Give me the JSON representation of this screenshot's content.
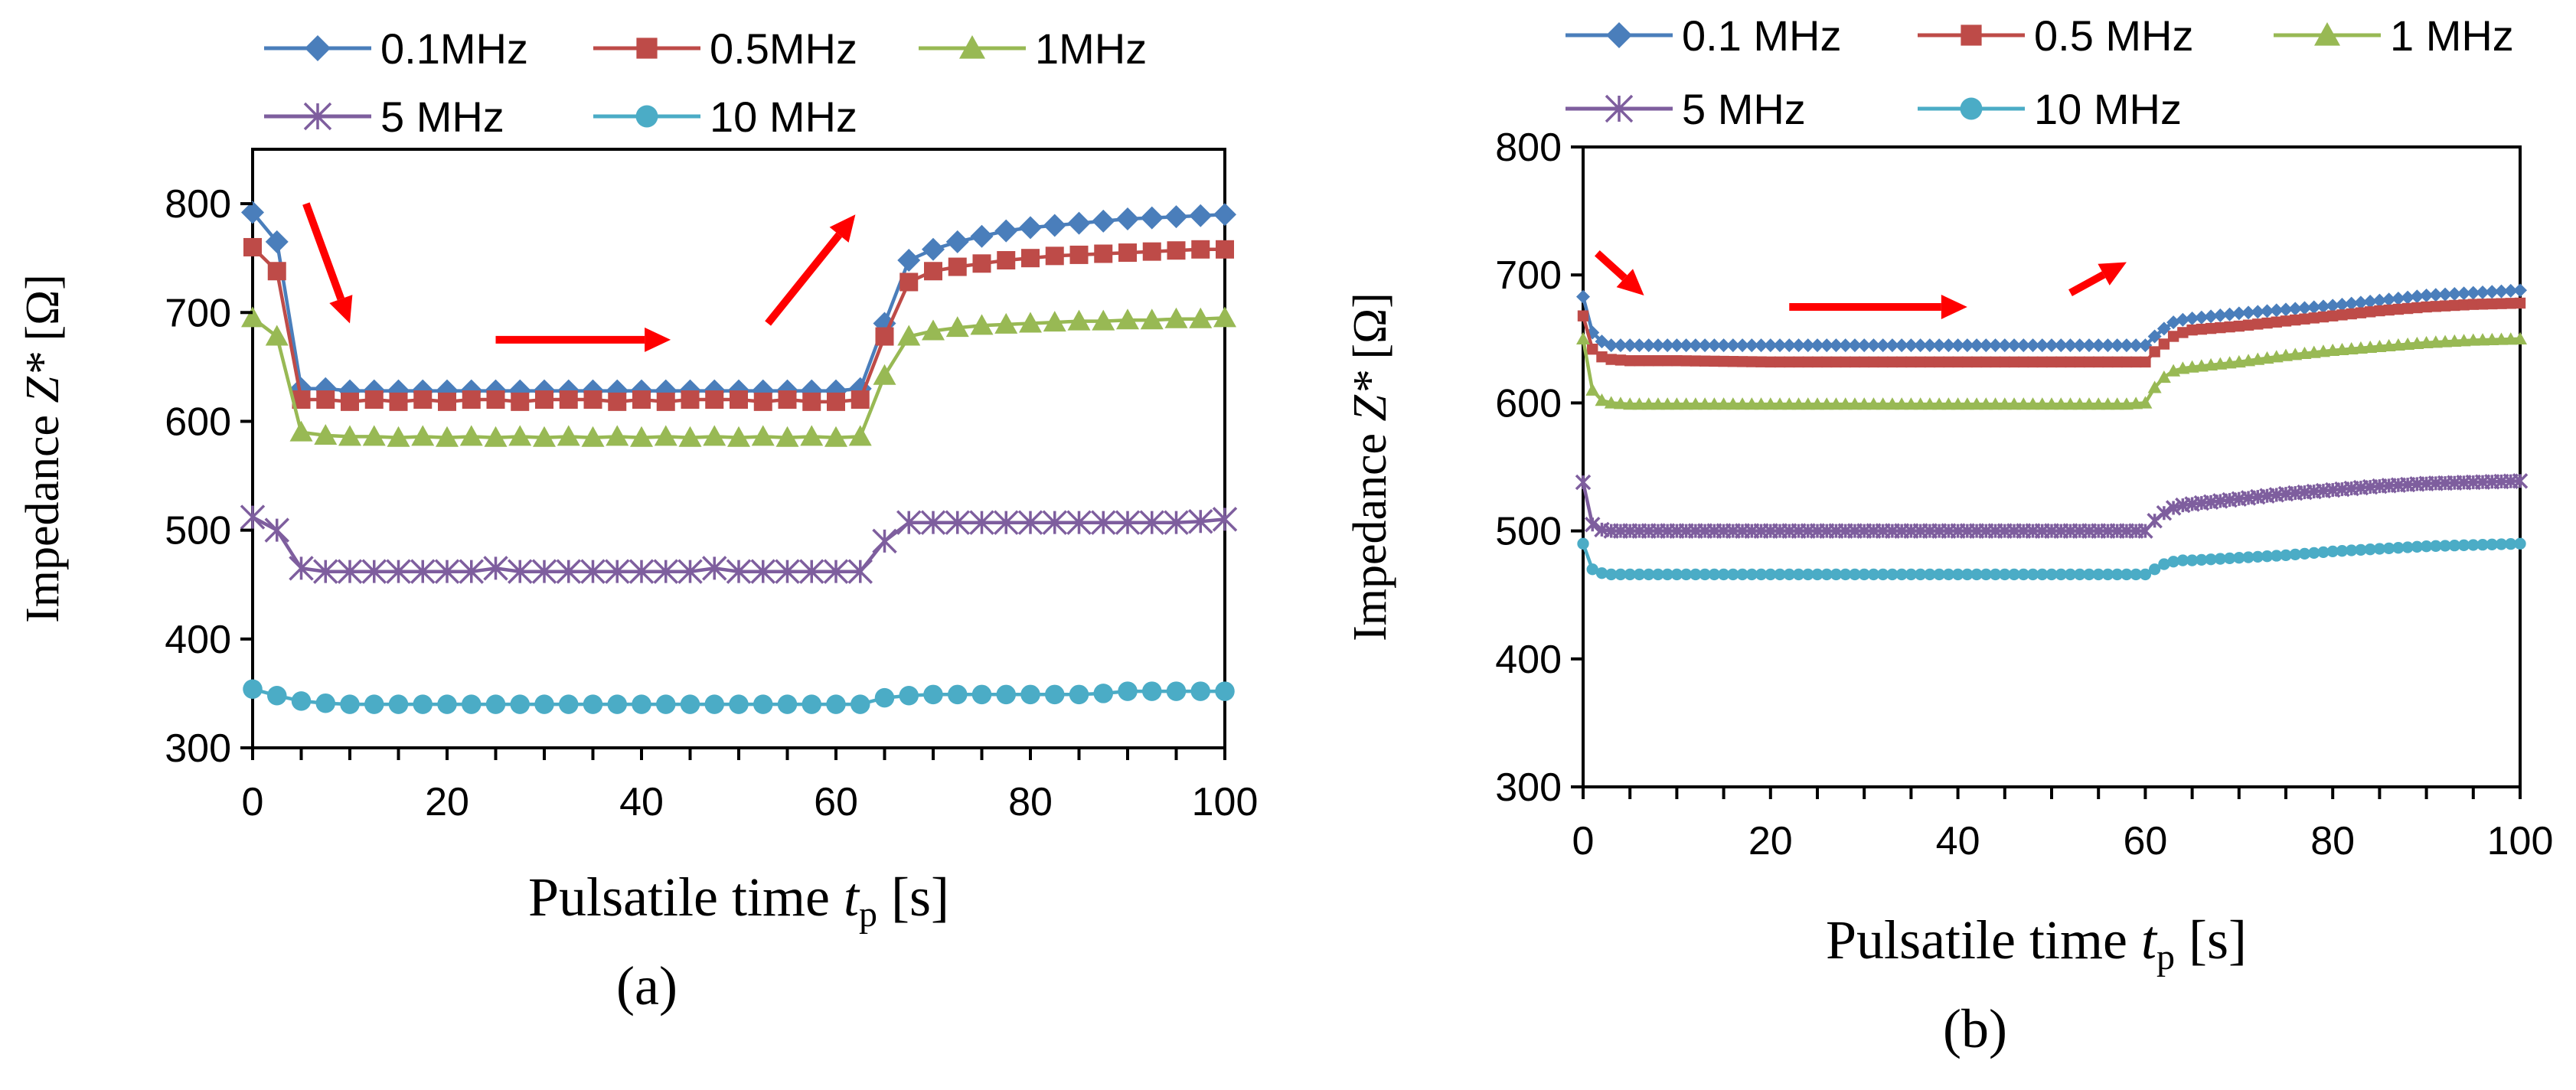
{
  "chart_data": [
    {
      "type": "line",
      "panel_label": "(a)",
      "xlabel": "Pulsatile time ",
      "xlabel_var": "t",
      "xlabel_sub": "p",
      "xlabel_unit": " [s]",
      "ylabel": "Impedance ",
      "ylabel_var": "Z*",
      "ylabel_unit": " [Ω]",
      "xlim": [
        0,
        100
      ],
      "ylim": [
        300,
        850
      ],
      "xticks": [
        "0",
        "20",
        "40",
        "60",
        "80",
        "100"
      ],
      "yticks": [
        "300",
        "400",
        "500",
        "600",
        "700",
        "800"
      ],
      "legend_position": "top",
      "series": [
        {
          "name": "0.1MHz",
          "color": "#4a7ebb",
          "marker": "diamond",
          "x": [
            0,
            2.5,
            5,
            7.5,
            10,
            12.5,
            15,
            17.5,
            20,
            22.5,
            25,
            27.5,
            30,
            32.5,
            35,
            37.5,
            40,
            42.5,
            45,
            47.5,
            50,
            52.5,
            55,
            57.5,
            60,
            62.5,
            65,
            67.5,
            70,
            72.5,
            75,
            77.5,
            80,
            82.5,
            85,
            87.5,
            90,
            92.5,
            95,
            97.5,
            100
          ],
          "y": [
            792,
            765,
            630,
            630,
            628,
            628,
            628,
            628,
            628,
            628,
            628,
            628,
            628,
            628,
            628,
            628,
            628,
            628,
            628,
            628,
            628,
            628,
            628,
            628,
            628,
            630,
            690,
            748,
            758,
            765,
            770,
            775,
            778,
            780,
            782,
            784,
            786,
            787,
            788,
            789,
            790
          ]
        },
        {
          "name": "0.5MHz",
          "color": "#be4b48",
          "marker": "square",
          "x": [
            0,
            2.5,
            5,
            7.5,
            10,
            12.5,
            15,
            17.5,
            20,
            22.5,
            25,
            27.5,
            30,
            32.5,
            35,
            37.5,
            40,
            42.5,
            45,
            47.5,
            50,
            52.5,
            55,
            57.5,
            60,
            62.5,
            65,
            67.5,
            70,
            72.5,
            75,
            77.5,
            80,
            82.5,
            85,
            87.5,
            90,
            92.5,
            95,
            97.5,
            100
          ],
          "y": [
            760,
            738,
            620,
            620,
            618,
            620,
            618,
            620,
            618,
            620,
            620,
            618,
            620,
            620,
            620,
            618,
            620,
            618,
            620,
            620,
            620,
            618,
            620,
            618,
            618,
            620,
            678,
            728,
            738,
            742,
            745,
            748,
            750,
            752,
            753,
            754,
            755,
            756,
            757,
            758,
            758
          ]
        },
        {
          "name": "1MHz",
          "color": "#98b954",
          "marker": "triangle",
          "x": [
            0,
            2.5,
            5,
            7.5,
            10,
            12.5,
            15,
            17.5,
            20,
            22.5,
            25,
            27.5,
            30,
            32.5,
            35,
            37.5,
            40,
            42.5,
            45,
            47.5,
            50,
            52.5,
            55,
            57.5,
            60,
            62.5,
            65,
            67.5,
            70,
            72.5,
            75,
            77.5,
            80,
            82.5,
            85,
            87.5,
            90,
            92.5,
            95,
            97.5,
            100
          ],
          "y": [
            695,
            678,
            590,
            587,
            586,
            586,
            585,
            586,
            585,
            586,
            585,
            586,
            585,
            586,
            585,
            586,
            585,
            586,
            585,
            586,
            585,
            586,
            585,
            586,
            585,
            586,
            642,
            678,
            683,
            686,
            688,
            689,
            690,
            691,
            692,
            692,
            693,
            693,
            694,
            694,
            695
          ]
        },
        {
          "name": "5 MHz",
          "color": "#7e5e9e",
          "marker": "star",
          "x": [
            0,
            2.5,
            5,
            7.5,
            10,
            12.5,
            15,
            17.5,
            20,
            22.5,
            25,
            27.5,
            30,
            32.5,
            35,
            37.5,
            40,
            42.5,
            45,
            47.5,
            50,
            52.5,
            55,
            57.5,
            60,
            62.5,
            65,
            67.5,
            70,
            72.5,
            75,
            77.5,
            80,
            82.5,
            85,
            87.5,
            90,
            92.5,
            95,
            97.5,
            100
          ],
          "y": [
            512,
            500,
            465,
            462,
            462,
            462,
            462,
            462,
            462,
            462,
            465,
            462,
            462,
            462,
            462,
            462,
            462,
            462,
            462,
            465,
            462,
            462,
            462,
            462,
            462,
            462,
            490,
            507,
            507,
            507,
            507,
            507,
            507,
            507,
            507,
            507,
            507,
            507,
            507,
            508,
            510
          ]
        },
        {
          "name": "10 MHz",
          "color": "#4bacc6",
          "marker": "circle",
          "x": [
            0,
            2.5,
            5,
            7.5,
            10,
            12.5,
            15,
            17.5,
            20,
            22.5,
            25,
            27.5,
            30,
            32.5,
            35,
            37.5,
            40,
            42.5,
            45,
            47.5,
            50,
            52.5,
            55,
            57.5,
            60,
            62.5,
            65,
            67.5,
            70,
            72.5,
            75,
            77.5,
            80,
            82.5,
            85,
            87.5,
            90,
            92.5,
            95,
            97.5,
            100
          ],
          "y": [
            354,
            348,
            343,
            341,
            340,
            340,
            340,
            340,
            340,
            340,
            340,
            340,
            340,
            340,
            340,
            340,
            340,
            340,
            340,
            340,
            340,
            340,
            340,
            340,
            340,
            340,
            346,
            348,
            349,
            349,
            349,
            349,
            349,
            349,
            349,
            350,
            352,
            352,
            352,
            352,
            352
          ]
        }
      ],
      "annotations": [
        {
          "type": "arrow",
          "label": "decrease",
          "from": [
            5.5,
            800
          ],
          "to": [
            10,
            690
          ],
          "color": "#ff0000"
        },
        {
          "type": "arrow",
          "label": "steady",
          "from": [
            25,
            675
          ],
          "to": [
            43,
            675
          ],
          "color": "#ff0000"
        },
        {
          "type": "arrow",
          "label": "increase",
          "from": [
            53,
            690
          ],
          "to": [
            62,
            790
          ],
          "color": "#ff0000"
        }
      ]
    },
    {
      "type": "line",
      "panel_label": "(b)",
      "xlabel": "Pulsatile time ",
      "xlabel_var": "t",
      "xlabel_sub": "p",
      "xlabel_unit": " [s]",
      "ylabel": "Impedance ",
      "ylabel_var": "Z*",
      "ylabel_unit": " [Ω]",
      "xlim": [
        0,
        100
      ],
      "ylim": [
        300,
        800
      ],
      "xticks": [
        "0",
        "20",
        "40",
        "60",
        "80",
        "100"
      ],
      "yticks": [
        "300",
        "400",
        "500",
        "600",
        "700",
        "800"
      ],
      "legend_position": "top",
      "series": [
        {
          "name": "0.1 MHz",
          "color": "#4a7ebb",
          "marker": "diamond",
          "x": [
            0,
            1,
            2,
            3,
            5,
            10,
            20,
            30,
            40,
            50,
            58,
            60,
            61,
            62,
            63,
            64,
            65,
            70,
            75,
            80,
            85,
            90,
            95,
            100
          ],
          "y": [
            683,
            655,
            648,
            645,
            645,
            645,
            645,
            645,
            645,
            645,
            645,
            645,
            652,
            658,
            663,
            665,
            666,
            670,
            673,
            676,
            680,
            684,
            686,
            688
          ]
        },
        {
          "name": "0.5 MHz",
          "color": "#be4b48",
          "marker": "square",
          "x": [
            0,
            1,
            2,
            3,
            5,
            10,
            20,
            30,
            40,
            50,
            58,
            60,
            61,
            62,
            63,
            64,
            65,
            70,
            75,
            80,
            85,
            90,
            95,
            100
          ],
          "y": [
            668,
            642,
            636,
            634,
            633,
            633,
            632,
            632,
            632,
            632,
            632,
            632,
            640,
            646,
            652,
            655,
            657,
            660,
            664,
            668,
            672,
            675,
            677,
            678
          ]
        },
        {
          "name": "1 MHz",
          "color": "#98b954",
          "marker": "triangle",
          "x": [
            0,
            1,
            2,
            3,
            5,
            10,
            20,
            30,
            40,
            50,
            58,
            60,
            61,
            62,
            63,
            64,
            65,
            70,
            75,
            80,
            85,
            90,
            95,
            100
          ],
          "y": [
            650,
            610,
            602,
            600,
            599,
            599,
            599,
            599,
            599,
            599,
            599,
            600,
            612,
            620,
            625,
            627,
            628,
            632,
            637,
            641,
            644,
            647,
            649,
            650
          ]
        },
        {
          "name": "5 MHz",
          "color": "#7e5e9e",
          "marker": "star",
          "x": [
            0,
            1,
            2,
            3,
            5,
            10,
            20,
            30,
            40,
            50,
            58,
            60,
            61,
            62,
            63,
            64,
            65,
            70,
            75,
            80,
            85,
            90,
            95,
            100
          ],
          "y": [
            538,
            505,
            501,
            500,
            500,
            500,
            500,
            500,
            500,
            500,
            500,
            500,
            508,
            514,
            518,
            520,
            521,
            525,
            529,
            532,
            535,
            537,
            538,
            539
          ]
        },
        {
          "name": "10 MHz",
          "color": "#4bacc6",
          "marker": "circle",
          "x": [
            0,
            1,
            2,
            3,
            5,
            10,
            20,
            30,
            40,
            50,
            58,
            60,
            61,
            62,
            63,
            64,
            65,
            70,
            75,
            80,
            85,
            90,
            95,
            100
          ],
          "y": [
            490,
            470,
            467,
            466,
            466,
            466,
            466,
            466,
            466,
            466,
            466,
            466,
            470,
            474,
            476,
            477,
            477,
            479,
            481,
            484,
            486,
            488,
            489,
            490
          ]
        }
      ],
      "annotations": [
        {
          "type": "arrow",
          "label": "decrease",
          "from": [
            1.5,
            717
          ],
          "to": [
            6.5,
            684
          ],
          "color": "#ff0000"
        },
        {
          "type": "arrow",
          "label": "steady",
          "from": [
            22,
            675
          ],
          "to": [
            41,
            675
          ],
          "color": "#ff0000"
        },
        {
          "type": "arrow",
          "label": "increase",
          "from": [
            52,
            686
          ],
          "to": [
            58,
            710
          ],
          "color": "#ff0000"
        }
      ]
    }
  ]
}
